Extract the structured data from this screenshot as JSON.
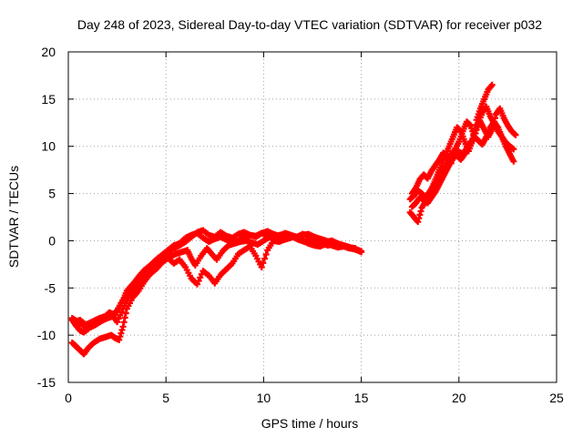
{
  "chart_data": {
    "type": "scatter",
    "title": "Day 248 of 2023, Sidereal Day-to-day VTEC variation (SDTVAR) for receiver p032",
    "xlabel": "GPS time / hours",
    "ylabel": "SDTVAR / TECUs",
    "xlim": [
      0,
      25
    ],
    "ylim": [
      -15,
      20
    ],
    "xticks": [
      0,
      5,
      10,
      15,
      20,
      25
    ],
    "yticks": [
      -15,
      -10,
      -5,
      0,
      5,
      10,
      15,
      20
    ],
    "xtick_labels": [
      "0",
      "5",
      "10",
      "15",
      "20",
      "25"
    ],
    "ytick_labels": [
      "-15",
      "-10",
      "-5",
      "0",
      "5",
      "10",
      "15",
      "20"
    ],
    "grid": true,
    "marker": "+",
    "color": "#ff0000",
    "series": [
      {
        "name": "track-1",
        "x": [
          0.2,
          0.5,
          0.8,
          1.0,
          1.3,
          1.6,
          1.9,
          2.1,
          2.3,
          2.5,
          2.8,
          3.0,
          3.3,
          3.6,
          3.9,
          4.2,
          4.5,
          4.8,
          5.1,
          5.4,
          5.7,
          6.0,
          6.3,
          6.6,
          6.9,
          7.2,
          7.5,
          7.8,
          8.1,
          8.4,
          8.7,
          9.0,
          9.3,
          9.6,
          9.9,
          10.2,
          10.5,
          10.8,
          11.1,
          11.4,
          11.7,
          12.0,
          12.3,
          12.6,
          12.9,
          13.2,
          13.5,
          13.8,
          14.1,
          14.4,
          14.7,
          15.0
        ],
        "y": [
          -8.2,
          -8.6,
          -9.0,
          -8.8,
          -8.5,
          -8.2,
          -8.0,
          -7.6,
          -7.8,
          -7.4,
          -6.3,
          -5.3,
          -4.6,
          -3.8,
          -3.1,
          -2.6,
          -2.0,
          -1.5,
          -1.0,
          -0.5,
          -0.3,
          0.3,
          0.6,
          0.8,
          0.3,
          -0.1,
          0.2,
          0.4,
          0.1,
          -0.3,
          0.0,
          0.4,
          0.6,
          0.5,
          0.8,
          0.5,
          0.3,
          0.6,
          0.7,
          0.5,
          0.3,
          0.6,
          0.7,
          0.4,
          0.2,
          0.0,
          -0.2,
          -0.4,
          -0.5,
          -0.7,
          -0.9,
          -1.1
        ]
      },
      {
        "name": "track-2",
        "x": [
          0.2,
          0.4,
          0.6,
          0.8,
          1.1,
          1.4,
          1.7,
          2.0,
          2.3,
          2.5,
          2.8,
          3.1,
          3.4,
          3.7,
          4.0,
          4.3,
          4.6,
          4.9,
          5.2,
          5.5,
          5.8,
          6.1,
          6.3,
          6.5,
          6.8,
          7.1,
          7.3,
          7.6,
          7.9,
          8.2,
          8.5,
          8.8,
          9.1,
          9.4,
          9.7,
          10.0,
          10.3,
          10.6,
          10.9,
          11.2,
          11.5,
          11.8,
          12.1,
          12.4,
          12.7,
          13.0,
          13.3,
          13.6,
          13.9,
          14.2,
          14.5,
          14.8
        ],
        "y": [
          -8.4,
          -9.0,
          -9.5,
          -9.7,
          -9.2,
          -8.9,
          -8.5,
          -8.2,
          -8.0,
          -8.6,
          -7.2,
          -6.0,
          -5.1,
          -4.5,
          -3.6,
          -3.0,
          -2.5,
          -2.1,
          -1.7,
          -1.4,
          -1.2,
          -1.0,
          -1.9,
          -2.6,
          -1.6,
          -0.8,
          -1.3,
          -2.0,
          -1.1,
          -0.5,
          -0.3,
          -0.1,
          0.0,
          -0.2,
          -0.4,
          0.0,
          0.4,
          0.2,
          0.0,
          0.2,
          0.4,
          0.1,
          -0.1,
          0.1,
          0.0,
          -0.3,
          -0.5,
          -0.2,
          -0.4,
          -0.6,
          -0.8,
          -1.0
        ]
      },
      {
        "name": "track-3",
        "x": [
          0.2,
          0.4,
          0.6,
          0.8,
          1.0,
          1.3,
          1.6,
          1.9,
          2.2,
          2.4,
          2.6,
          2.8,
          3.0,
          3.3,
          3.6,
          3.9,
          4.2,
          4.5,
          4.8,
          5.1,
          5.4,
          5.7,
          6.0,
          6.3,
          6.6,
          6.9,
          7.2,
          7.5,
          7.8,
          8.1,
          8.4,
          8.7,
          9.0,
          9.3,
          9.6,
          9.9,
          10.2,
          10.5,
          10.8,
          11.1,
          11.4,
          11.7,
          12.0,
          12.3,
          12.6,
          12.9,
          13.2,
          13.5,
          13.8,
          14.1,
          14.4,
          14.7,
          15.0
        ],
        "y": [
          -10.8,
          -11.2,
          -11.6,
          -12.0,
          -11.4,
          -10.8,
          -10.4,
          -10.2,
          -10.0,
          -10.3,
          -10.5,
          -9.1,
          -7.2,
          -6.0,
          -5.3,
          -4.3,
          -3.5,
          -3.0,
          -2.3,
          -1.8,
          -2.4,
          -2.0,
          -2.8,
          -4.0,
          -4.6,
          -3.2,
          -3.7,
          -4.5,
          -3.6,
          -3.0,
          -2.4,
          -1.4,
          -1.0,
          -0.6,
          -1.6,
          -2.8,
          -1.0,
          0.0,
          -0.1,
          0.2,
          0.4,
          0.3,
          0.0,
          -0.3,
          -0.5,
          -0.6,
          -0.3,
          -0.5,
          -0.7,
          -0.6,
          -0.8,
          -0.9,
          -1.2
        ]
      },
      {
        "name": "track-4",
        "x": [
          0.3,
          0.6,
          0.9,
          1.2,
          1.5,
          1.8,
          2.1,
          2.4,
          2.7,
          3.0,
          3.3,
          3.6,
          3.9,
          4.2,
          4.5,
          4.8,
          5.1,
          5.4,
          5.7,
          6.0,
          6.3,
          6.6,
          6.9,
          7.2,
          7.5,
          7.8,
          8.1,
          8.4,
          8.7,
          9.0,
          9.3,
          9.6,
          9.9,
          10.2,
          10.5,
          10.8,
          11.1,
          11.4,
          11.7,
          12.0,
          12.3,
          12.6,
          12.9,
          13.2,
          13.5,
          13.8,
          14.1,
          14.4,
          14.7
        ],
        "y": [
          -8.6,
          -8.4,
          -8.9,
          -9.0,
          -8.6,
          -8.3,
          -8.1,
          -7.8,
          -6.6,
          -5.6,
          -5.0,
          -4.1,
          -3.4,
          -2.8,
          -2.3,
          -1.9,
          -1.2,
          -0.8,
          -0.5,
          -0.1,
          0.4,
          0.9,
          1.1,
          0.6,
          0.4,
          0.9,
          0.5,
          0.3,
          0.7,
          0.9,
          0.6,
          0.4,
          0.8,
          1.0,
          0.7,
          0.5,
          0.8,
          0.6,
          0.4,
          0.7,
          0.5,
          0.2,
          0.1,
          -0.1,
          0.0,
          -0.3,
          -0.5,
          -0.7,
          -0.8
        ]
      },
      {
        "name": "track-5",
        "x": [
          17.5,
          17.7,
          17.9,
          18.1,
          18.3,
          18.5,
          18.7,
          18.9,
          19.1,
          19.3,
          19.5,
          19.7,
          19.9,
          20.1,
          20.3,
          20.5,
          20.7,
          20.9,
          21.1,
          21.3,
          21.5,
          21.7
        ],
        "y": [
          3.0,
          2.5,
          2.0,
          3.5,
          4.2,
          5.0,
          6.0,
          7.0,
          8.0,
          9.0,
          10.0,
          11.0,
          12.0,
          11.6,
          10.5,
          9.5,
          10.6,
          12.8,
          14.0,
          15.0,
          16.0,
          16.5
        ]
      },
      {
        "name": "track-6",
        "x": [
          17.6,
          17.8,
          18.0,
          18.2,
          18.4,
          18.6,
          18.8,
          19.0,
          19.2,
          19.4,
          19.6,
          19.8,
          20.0,
          20.2,
          20.4,
          20.6,
          20.8,
          21.0,
          21.2,
          21.4,
          21.6,
          21.8,
          22.0,
          22.2,
          22.4,
          22.6,
          22.8
        ],
        "y": [
          5.0,
          5.6,
          6.5,
          7.0,
          6.6,
          7.4,
          8.0,
          8.6,
          9.3,
          8.8,
          8.2,
          9.6,
          10.5,
          11.6,
          12.6,
          12.2,
          11.0,
          12.5,
          13.6,
          14.2,
          13.2,
          12.4,
          11.6,
          11.0,
          10.4,
          10.0,
          9.7
        ]
      },
      {
        "name": "track-7",
        "x": [
          17.5,
          17.7,
          17.9,
          18.1,
          18.3,
          18.5,
          18.7,
          18.9,
          19.1,
          19.3,
          19.5,
          19.7,
          19.9,
          20.1,
          20.3,
          20.5,
          20.7,
          20.9,
          21.1,
          21.3,
          21.5,
          21.7,
          21.9,
          22.1,
          22.3,
          22.5,
          22.7,
          22.9
        ],
        "y": [
          4.4,
          4.8,
          5.3,
          5.0,
          4.6,
          5.2,
          5.8,
          6.4,
          7.0,
          7.8,
          8.6,
          9.5,
          9.0,
          8.6,
          9.2,
          9.8,
          10.8,
          12.0,
          12.6,
          11.8,
          11.0,
          11.8,
          13.4,
          14.0,
          13.0,
          12.2,
          11.6,
          11.2
        ]
      },
      {
        "name": "track-8",
        "x": [
          17.6,
          17.8,
          18.0,
          18.2,
          18.4,
          18.6,
          18.8,
          19.0,
          19.2,
          19.4,
          19.6,
          19.8,
          20.0,
          20.2,
          20.4,
          20.6,
          20.8,
          21.0,
          21.2,
          21.4,
          21.6,
          21.8,
          22.0,
          22.2,
          22.4,
          22.6,
          22.8
        ],
        "y": [
          3.6,
          4.0,
          4.6,
          4.3,
          4.0,
          4.6,
          5.2,
          6.0,
          6.8,
          7.6,
          8.4,
          9.0,
          9.4,
          9.2,
          9.8,
          10.4,
          11.0,
          10.6,
          10.2,
          11.0,
          12.0,
          12.6,
          12.0,
          11.0,
          10.0,
          9.2,
          8.4
        ]
      }
    ]
  }
}
